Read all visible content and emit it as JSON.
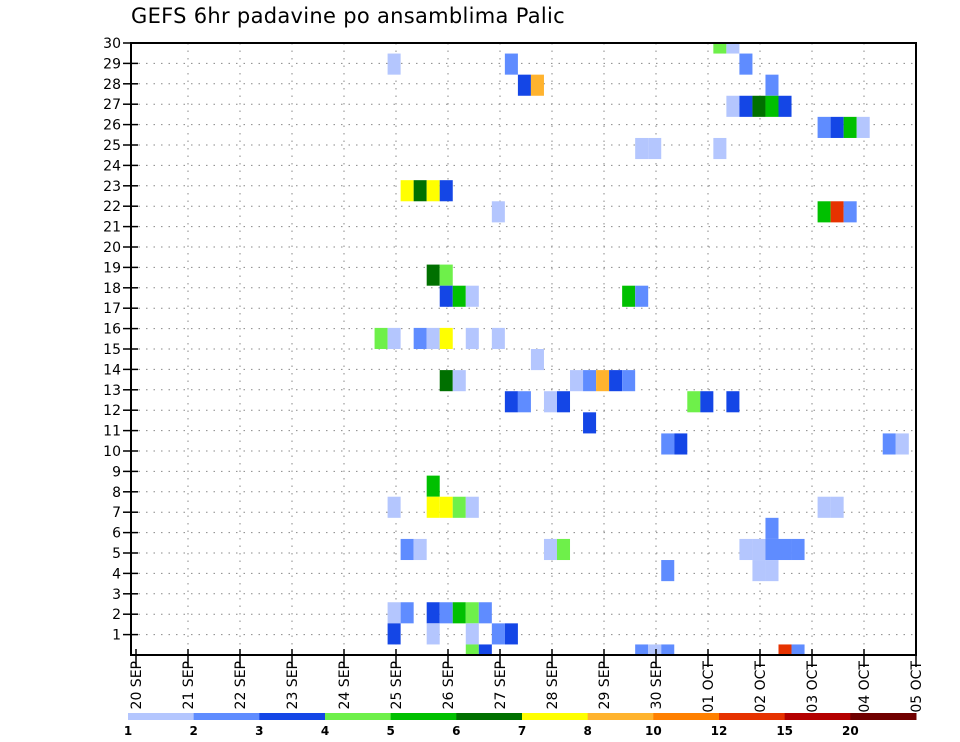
{
  "chart_data": {
    "type": "heatmap",
    "title": "GEFS 6hr padavine po ansamblima Palic",
    "xlabel": "",
    "ylabel": "",
    "x_tick_labels": [
      "20 SEP",
      "21 SEP",
      "22 SEP",
      "23 SEP",
      "24 SEP",
      "25 SEP",
      "26 SEP",
      "27 SEP",
      "28 SEP",
      "29 SEP",
      "30 SEP",
      "01 OCT",
      "02 OCT",
      "03 OCT",
      "04 OCT",
      "05 OCT"
    ],
    "y_tick_labels": [
      "1",
      "2",
      "3",
      "4",
      "5",
      "6",
      "7",
      "8",
      "9",
      "10",
      "11",
      "12",
      "13",
      "14",
      "15",
      "16",
      "17",
      "18",
      "19",
      "20",
      "21",
      "22",
      "23",
      "24",
      "25",
      "26",
      "27",
      "28",
      "29",
      "30"
    ],
    "time_step_hours": 6,
    "grid": true,
    "legend_placement": "bottom",
    "legend_levels": [
      "1",
      "2",
      "3",
      "4",
      "5",
      "6",
      "7",
      "8",
      "10",
      "12",
      "15",
      "20"
    ],
    "colors": [
      "#b4c6fe",
      "#5f8cff",
      "#1446e6",
      "#6ef04a",
      "#00c000",
      "#007000",
      "#ffff00",
      "#ffb32e",
      "#ff8000",
      "#e63200",
      "#b40000",
      "#700000"
    ],
    "cells_format": [
      "member_row",
      "time_step_index",
      "color_class"
    ],
    "cells": [
      [
        29,
        45,
        3
      ],
      [
        29,
        46,
        0
      ],
      [
        28,
        20,
        0
      ],
      [
        28,
        29,
        1
      ],
      [
        28,
        47,
        1
      ],
      [
        27,
        30,
        2
      ],
      [
        27,
        31,
        7
      ],
      [
        27,
        49,
        1
      ],
      [
        26,
        46,
        0
      ],
      [
        26,
        47,
        2
      ],
      [
        26,
        48,
        5
      ],
      [
        26,
        49,
        4
      ],
      [
        26,
        50,
        2
      ],
      [
        25,
        53,
        1
      ],
      [
        25,
        54,
        2
      ],
      [
        25,
        55,
        4
      ],
      [
        25,
        56,
        0
      ],
      [
        24,
        39,
        0
      ],
      [
        24,
        40,
        0
      ],
      [
        24,
        45,
        0
      ],
      [
        22,
        21,
        6
      ],
      [
        22,
        22,
        5
      ],
      [
        22,
        23,
        6
      ],
      [
        22,
        24,
        2
      ],
      [
        21,
        28,
        0
      ],
      [
        21,
        53,
        4
      ],
      [
        21,
        54,
        9
      ],
      [
        21,
        55,
        1
      ],
      [
        18,
        23,
        5
      ],
      [
        18,
        24,
        3
      ],
      [
        17,
        24,
        2
      ],
      [
        17,
        25,
        4
      ],
      [
        17,
        26,
        0
      ],
      [
        17,
        38,
        4
      ],
      [
        17,
        39,
        1
      ],
      [
        15,
        19,
        3
      ],
      [
        15,
        20,
        0
      ],
      [
        15,
        22,
        1
      ],
      [
        15,
        23,
        0
      ],
      [
        15,
        24,
        6
      ],
      [
        15,
        26,
        0
      ],
      [
        15,
        28,
        0
      ],
      [
        14,
        31,
        0
      ],
      [
        13,
        24,
        5
      ],
      [
        13,
        25,
        0
      ],
      [
        13,
        34,
        0
      ],
      [
        13,
        35,
        1
      ],
      [
        13,
        36,
        7
      ],
      [
        13,
        37,
        2
      ],
      [
        13,
        38,
        1
      ],
      [
        12,
        29,
        2
      ],
      [
        12,
        30,
        1
      ],
      [
        12,
        32,
        0
      ],
      [
        12,
        33,
        2
      ],
      [
        12,
        43,
        3
      ],
      [
        12,
        44,
        2
      ],
      [
        12,
        46,
        2
      ],
      [
        11,
        35,
        2
      ],
      [
        10,
        41,
        1
      ],
      [
        10,
        42,
        2
      ],
      [
        10,
        58,
        1
      ],
      [
        10,
        59,
        0
      ],
      [
        8,
        23,
        4
      ],
      [
        7,
        20,
        0
      ],
      [
        7,
        23,
        6
      ],
      [
        7,
        24,
        6
      ],
      [
        7,
        25,
        3
      ],
      [
        7,
        26,
        0
      ],
      [
        7,
        53,
        0
      ],
      [
        7,
        54,
        0
      ],
      [
        6,
        49,
        1
      ],
      [
        5,
        21,
        1
      ],
      [
        5,
        22,
        0
      ],
      [
        5,
        32,
        0
      ],
      [
        5,
        33,
        3
      ],
      [
        5,
        47,
        0
      ],
      [
        5,
        48,
        0
      ],
      [
        5,
        49,
        1
      ],
      [
        5,
        50,
        1
      ],
      [
        5,
        51,
        1
      ],
      [
        4,
        41,
        1
      ],
      [
        4,
        48,
        0
      ],
      [
        4,
        49,
        0
      ],
      [
        2,
        20,
        0
      ],
      [
        2,
        21,
        1
      ],
      [
        2,
        23,
        2
      ],
      [
        2,
        24,
        1
      ],
      [
        2,
        25,
        4
      ],
      [
        2,
        26,
        3
      ],
      [
        2,
        27,
        1
      ],
      [
        1,
        20,
        2
      ],
      [
        1,
        23,
        0
      ],
      [
        1,
        26,
        0
      ],
      [
        1,
        28,
        1
      ],
      [
        1,
        29,
        2
      ],
      [
        0,
        26,
        3
      ],
      [
        0,
        27,
        2
      ],
      [
        0,
        39,
        1
      ],
      [
        0,
        40,
        0
      ],
      [
        0,
        41,
        1
      ],
      [
        0,
        50,
        9
      ],
      [
        0,
        51,
        1
      ]
    ]
  }
}
